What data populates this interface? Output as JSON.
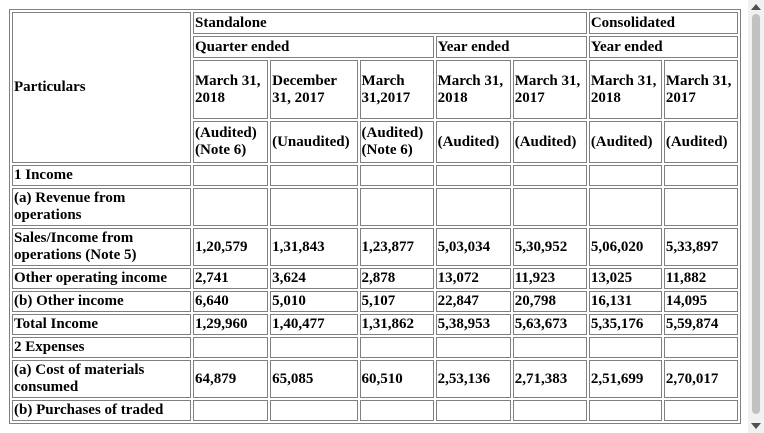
{
  "table": {
    "header": {
      "particulars": "Particulars",
      "groups": [
        "Standalone",
        "Consolidated"
      ],
      "periods": [
        "Quarter ended",
        "Year ended",
        "Year ended"
      ],
      "dates": [
        "March 31, 2018",
        "December 31, 2017",
        "March 31,2017",
        "March 31, 2018",
        "March 31, 2017",
        "March 31, 2018",
        "March 31, 2017"
      ],
      "audit": [
        "(Audited) (Note 6)",
        "(Unaudited)",
        "(Audited) (Note 6)",
        "(Audited)",
        "(Audited)",
        "(Audited)",
        "(Audited)"
      ]
    },
    "rows": [
      {
        "label": "1 Income",
        "values": []
      },
      {
        "label": "(a) Revenue from operations",
        "values": []
      },
      {
        "label": "Sales/Income from operations (Note 5)",
        "values": [
          "1,20,579",
          "1,31,843",
          "1,23,877",
          "5,03,034",
          "5,30,952",
          "5,06,020",
          "5,33,897"
        ]
      },
      {
        "label": "Other operating income",
        "values": [
          "2,741",
          "3,624",
          "2,878",
          "13,072",
          "11,923",
          "13,025",
          "11,882"
        ]
      },
      {
        "label": "(b) Other income",
        "values": [
          "6,640",
          "5,010",
          "5,107",
          "22,847",
          "20,798",
          "16,131",
          "14,095"
        ]
      },
      {
        "label": "Total Income",
        "values": [
          "1,29,960",
          "1,40,477",
          "1,31,862",
          "5,38,953",
          "5,63,673",
          "5,35,176",
          "5,59,874"
        ]
      },
      {
        "label": "2 Expenses",
        "values": []
      },
      {
        "label": "(a) Cost of materials consumed",
        "values": [
          "64,879",
          "65,085",
          "60,510",
          "2,53,136",
          "2,71,383",
          "2,51,699",
          "2,70,017"
        ]
      },
      {
        "label": "(b) Purchases of traded",
        "values": []
      }
    ]
  }
}
